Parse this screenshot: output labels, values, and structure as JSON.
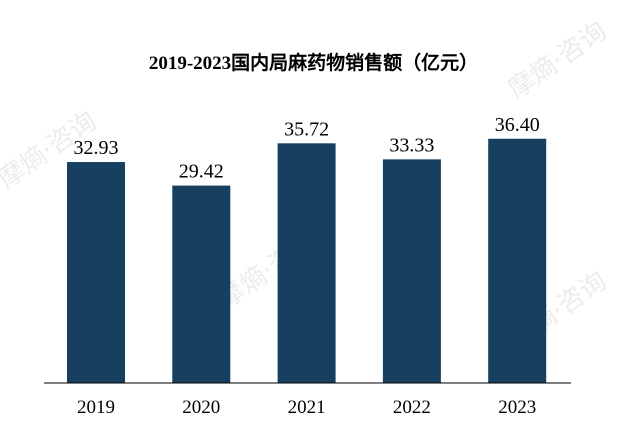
{
  "watermark": "摩熵·咨询",
  "chart_data": {
    "type": "bar",
    "title": "2019-2023国内局麻药物销售额（亿元）",
    "categories": [
      "2019",
      "2020",
      "2021",
      "2022",
      "2023"
    ],
    "values": [
      32.93,
      29.42,
      35.72,
      33.33,
      36.4
    ],
    "data_labels": [
      "32.93",
      "29.42",
      "35.72",
      "33.33",
      "36.40"
    ],
    "xlabel": "",
    "ylabel": "",
    "ylim": [
      0,
      40
    ],
    "grid": false,
    "legend": "none",
    "bar_color": "#173f5f"
  }
}
